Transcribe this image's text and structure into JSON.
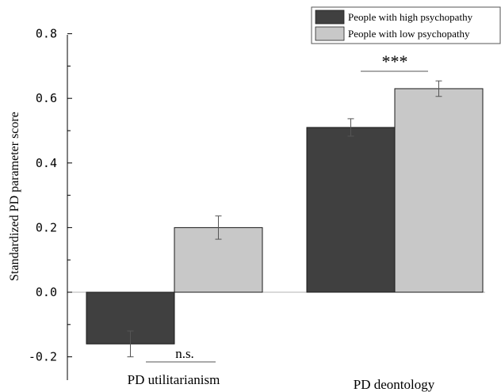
{
  "chart_data": {
    "type": "bar",
    "categories": [
      "PD utilitarianism",
      "PD deontology"
    ],
    "series": [
      {
        "name": "People with high psychopathy",
        "values": [
          -0.16,
          0.51
        ],
        "errors": [
          0.04,
          0.027
        ],
        "color": "#404040"
      },
      {
        "name": "People with low psychopathy",
        "values": [
          0.2,
          0.63
        ],
        "errors": [
          0.036,
          0.024
        ],
        "color": "#c8c8c8"
      }
    ],
    "ylabel": "Standardized PD parameter score",
    "ylim": [
      -0.2,
      0.8
    ],
    "yticks": [
      "0.8",
      "0.6",
      "0.4",
      "0.2",
      "0.0",
      "-0.2"
    ],
    "yticks_values": [
      0.8,
      0.6,
      0.4,
      0.2,
      0.0,
      -0.2
    ],
    "annotations": [
      "n.s.",
      "***"
    ],
    "legend_position": "top-right",
    "grid": false
  }
}
